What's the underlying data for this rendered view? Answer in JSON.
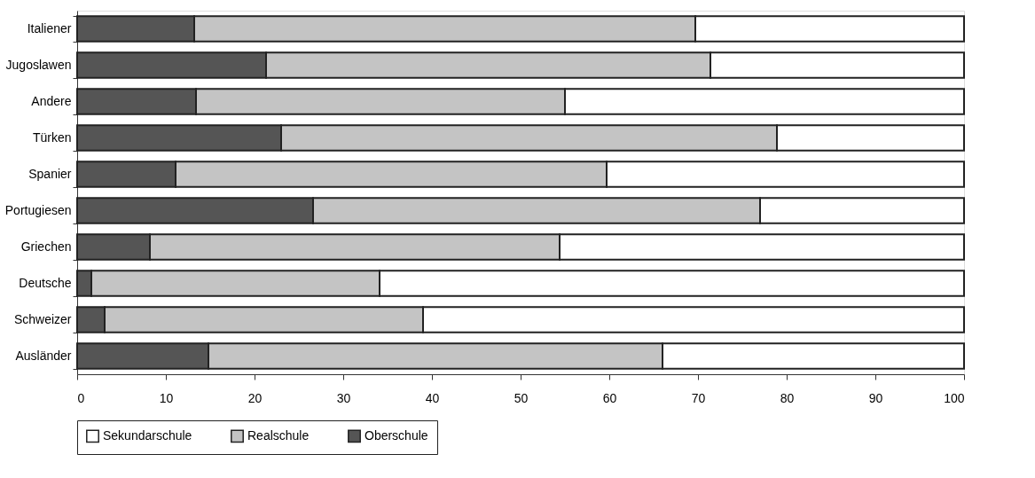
{
  "chart_data": {
    "type": "bar",
    "orientation": "horizontal",
    "stacked": true,
    "categories": [
      "Italiener",
      "Jugoslawen",
      "Andere",
      "Türken",
      "Spanier",
      "Portugiesen",
      "Griechen",
      "Deutsche",
      "Schweizer",
      "Ausländer"
    ],
    "series": [
      {
        "name": "Oberschule",
        "color": "#555555",
        "values": [
          13.2,
          21.3,
          13.4,
          23.0,
          11.1,
          26.6,
          8.2,
          1.6,
          3.1,
          14.8
        ]
      },
      {
        "name": "Realschule",
        "color": "#c4c4c4",
        "values": [
          56.5,
          50.1,
          41.6,
          55.9,
          48.6,
          50.4,
          46.2,
          32.5,
          35.9,
          51.2
        ]
      },
      {
        "name": "Sekundarschule",
        "color": "#ffffff",
        "values": [
          30.3,
          28.6,
          45.0,
          21.1,
          40.3,
          23.0,
          45.6,
          65.9,
          61.0,
          34.0
        ]
      }
    ],
    "xlim": [
      0,
      100
    ],
    "xticks": [
      0,
      10,
      20,
      30,
      40,
      50,
      60,
      70,
      80,
      90,
      100
    ],
    "grid": false,
    "legend": "bottom"
  }
}
